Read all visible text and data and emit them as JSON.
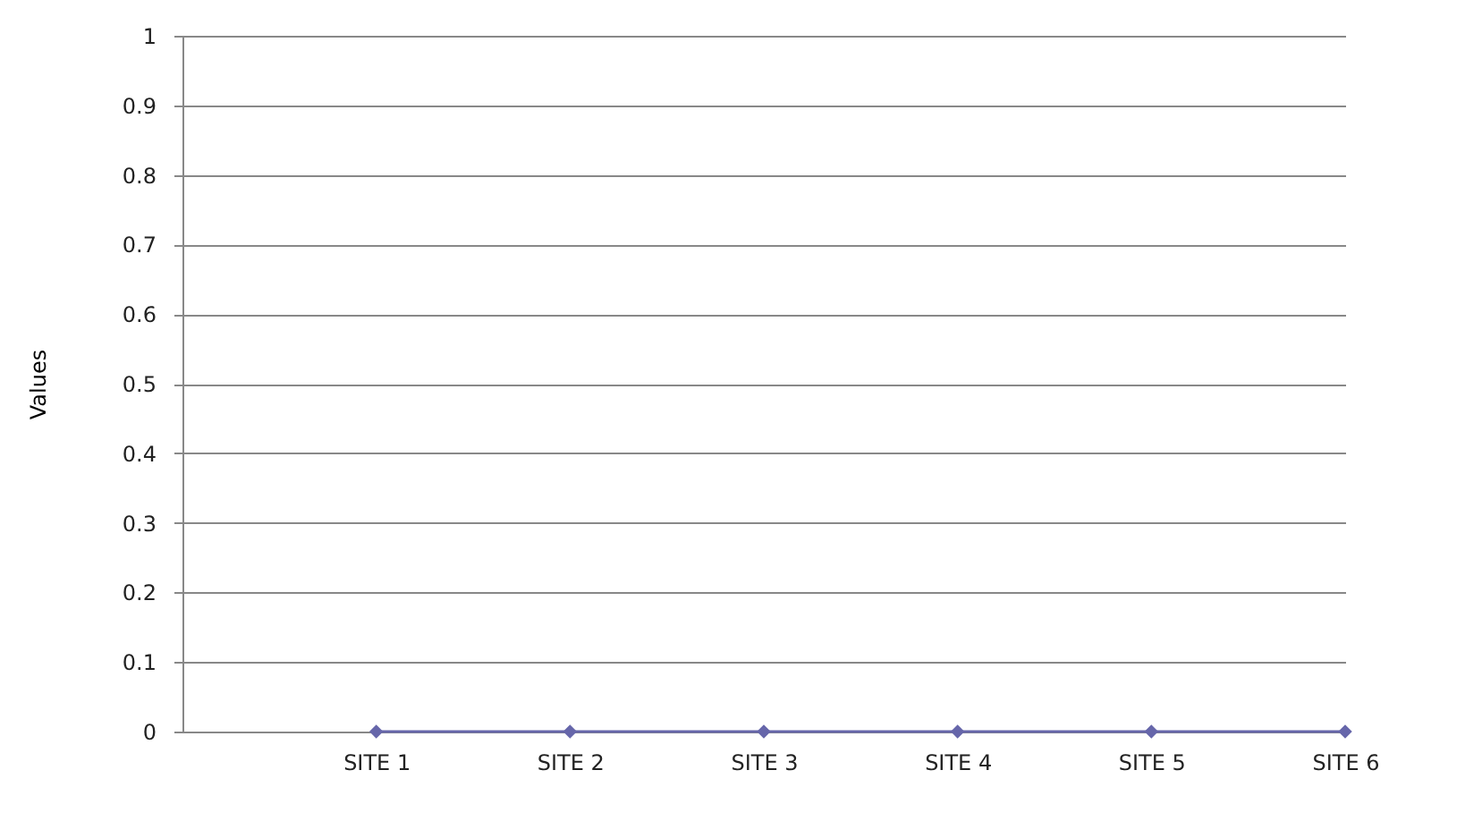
{
  "chart_data": {
    "type": "line",
    "ylabel": "Values",
    "categories": [
      null,
      "SITE 1",
      "SITE 2",
      "SITE 3",
      "SITE 4",
      "SITE 5",
      "SITE 6"
    ],
    "series": [
      {
        "color": "#6666aa",
        "values": [
          null,
          0,
          0,
          0,
          0,
          0,
          0
        ]
      }
    ],
    "ylim": [
      0,
      1
    ],
    "yticks": [
      0,
      0.1,
      0.2,
      0.3,
      0.4,
      0.5,
      0.6,
      0.7,
      0.8,
      0.9,
      1
    ],
    "grid": "y",
    "marker": "diamond",
    "line_style": "solid",
    "legend": false
  }
}
